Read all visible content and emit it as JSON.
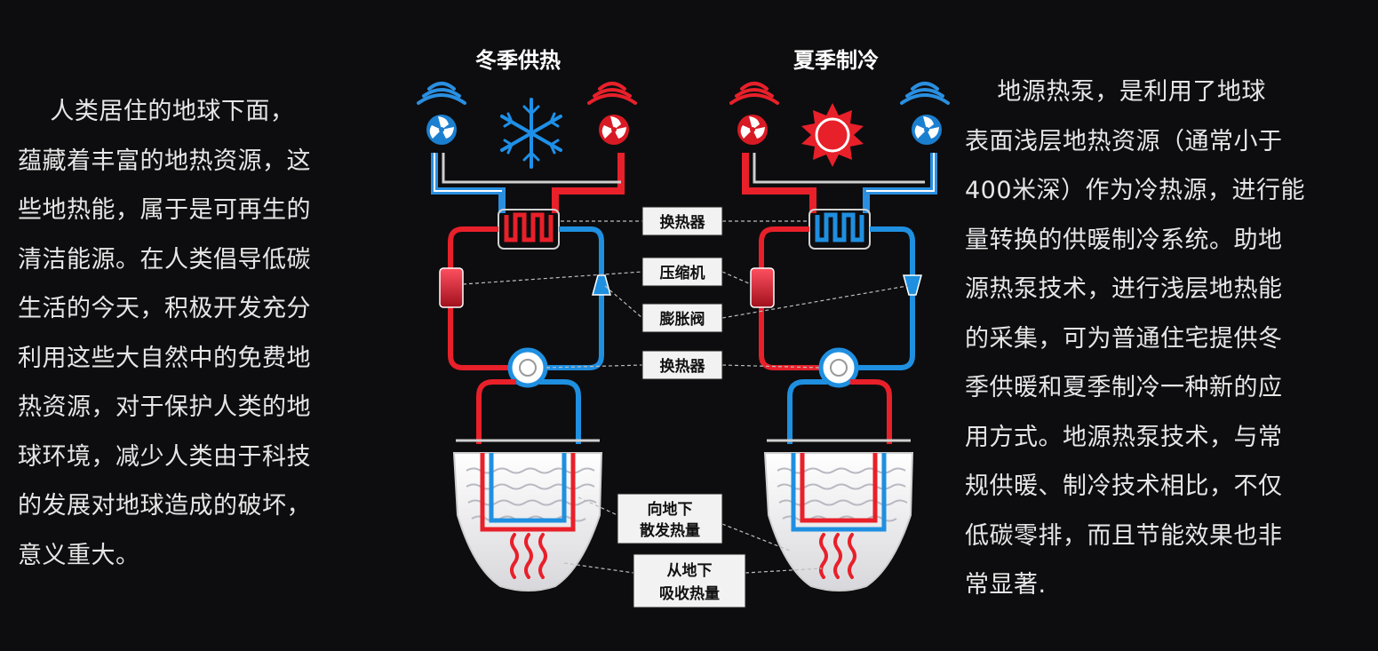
{
  "left_paragraph": {
    "lines": [
      "    人类居住的地球下面，",
      "蕴藏着丰富的地热资源，这",
      "些地热能，属于是可再生的",
      "清洁能源。在人类倡导低碳",
      "生活的今天，积极开发充分",
      "利用这些大自然中的免费地",
      "热资源，对于保护人类的地",
      "球环境，减少人类由于科技",
      "的发展对地球造成的破坏，",
      "意义重大。"
    ]
  },
  "right_paragraph": {
    "lines": [
      "    地源热泵，是利用了地球",
      "表面浅层地热资源（通常小于",
      "400米深）作为冷热源，进行能",
      "量转换的供暖制冷系统。助地",
      "源热泵技术，进行浅层地热能",
      "的采集，可为普通住宅提供冬",
      "季供暖和夏季制冷一种新的应",
      "用方式。地源热泵技术，与常",
      "规供暖、制冷技术相比，不仅",
      "低碳零排，而且节能效果也非",
      "常显著."
    ]
  },
  "diagram": {
    "winter": {
      "title": "冬季供热",
      "icon": "snowflake-icon"
    },
    "summer": {
      "title": "夏季制冷",
      "icon": "sun-icon"
    },
    "labels": {
      "heat_exchanger_top": "换热器",
      "compressor": "压缩机",
      "expansion_valve": "膨胀阀",
      "heat_exchanger_bottom": "换热器",
      "release_heat_line1": "向地下",
      "release_heat_line2": "散发热量",
      "absorb_heat_line1": "从地下",
      "absorb_heat_line2": "吸收热量"
    },
    "colors": {
      "hot": "#e8202a",
      "cold": "#1f8fe0",
      "background": "#0d0d0f"
    }
  }
}
